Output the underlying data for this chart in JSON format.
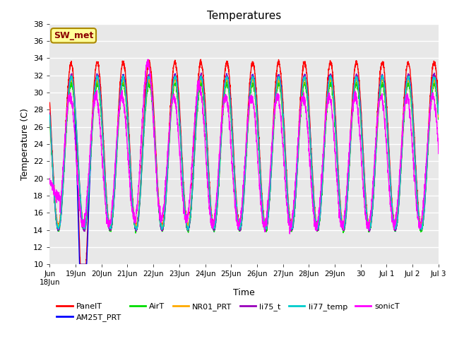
{
  "title": "Temperatures",
  "ylabel": "Temperature (C)",
  "xlabel": "Time",
  "annotation": "SW_met",
  "ylim": [
    10,
    38
  ],
  "xlim": [
    0,
    15
  ],
  "series_order": [
    "PanelT",
    "AM25T_PRT",
    "AirT",
    "NR01_PRT",
    "li75_t",
    "li77_temp",
    "sonicT"
  ],
  "series_colors": {
    "PanelT": "#ff0000",
    "AM25T_PRT": "#0000ff",
    "AirT": "#00dd00",
    "NR01_PRT": "#ffaa00",
    "li75_t": "#9900bb",
    "li77_temp": "#00cccc",
    "sonicT": "#ff00ff"
  },
  "xtick_vals": [
    0,
    1,
    2,
    3,
    4,
    5,
    6,
    7,
    8,
    9,
    10,
    11,
    12,
    13,
    14,
    15
  ],
  "xtick_labels": [
    "Jun\n18Jun",
    "19Jun",
    "20Jun",
    "21Jun",
    "22Jun",
    "23Jun",
    "24Jun",
    "25Jun",
    "26Jun",
    "27Jun",
    "28Jun",
    "29Jun",
    "30",
    "Jul 1",
    "Jul 2",
    "Jul 3"
  ],
  "ytick_vals": [
    10,
    12,
    14,
    16,
    18,
    20,
    22,
    24,
    26,
    28,
    30,
    32,
    34,
    36,
    38
  ],
  "bg_color": "#e8e8e8",
  "fig_bg": "#ffffff",
  "lw": 1.0
}
